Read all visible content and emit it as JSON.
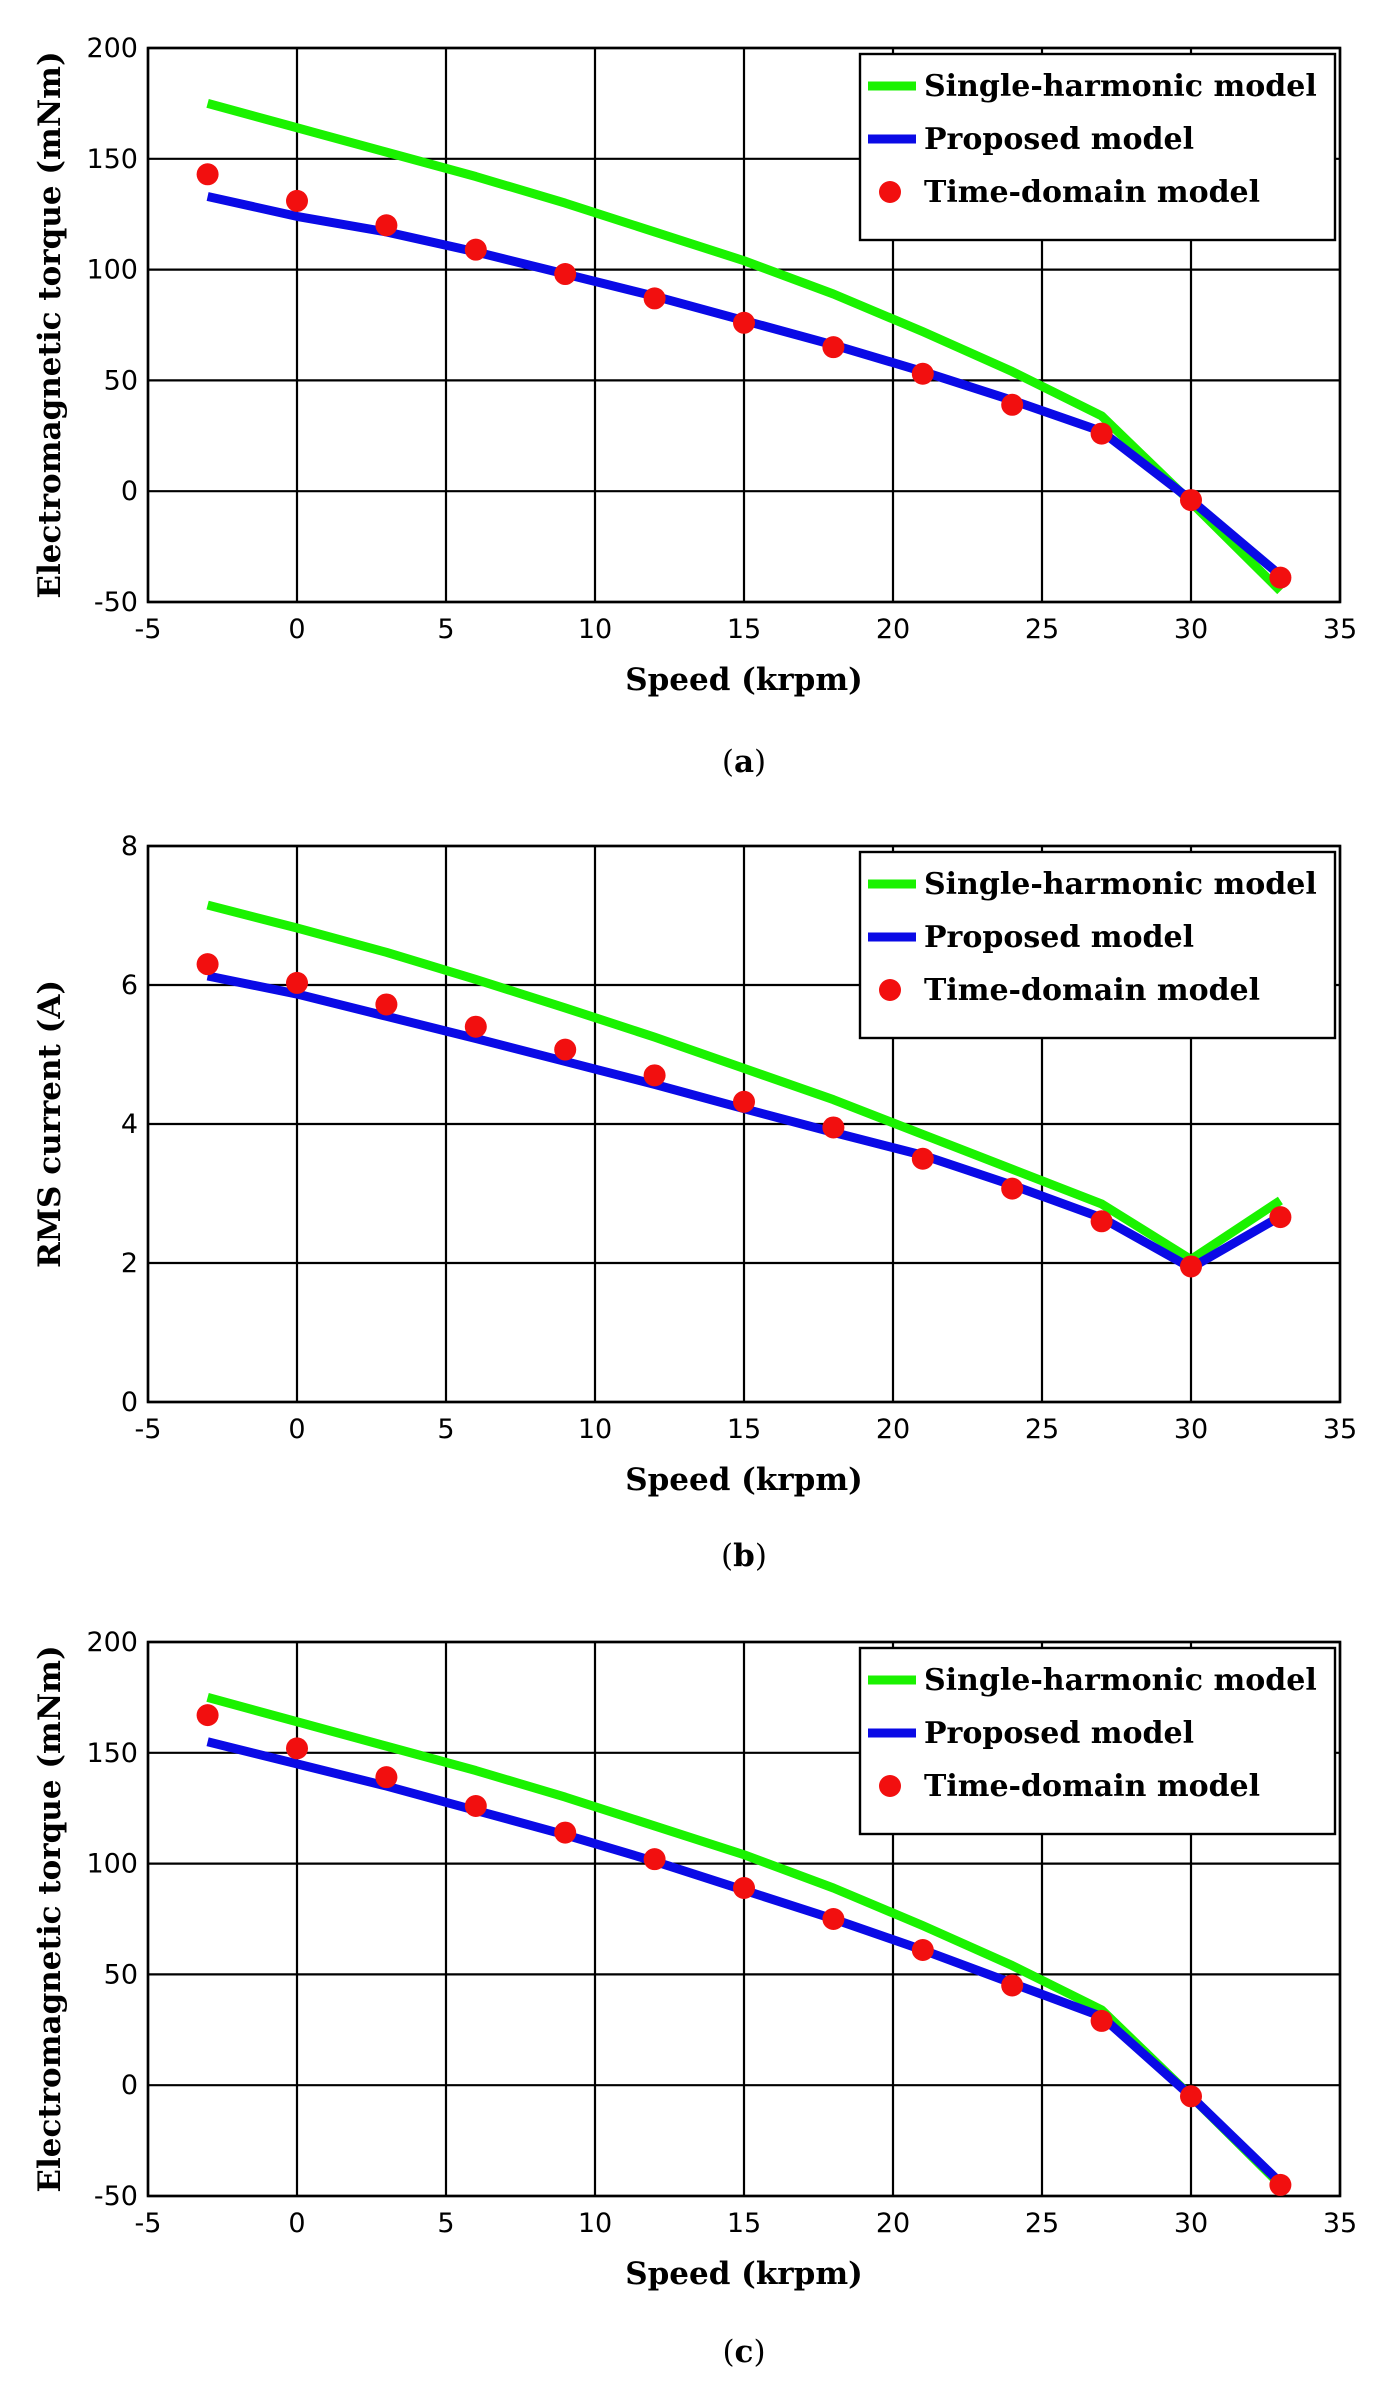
{
  "chart_data": [
    {
      "type": "line",
      "panel": "a",
      "caption_letter": "a",
      "xlabel": "Speed (krpm)",
      "ylabel": "Electromagnetic torque (mNm)",
      "xlim": [
        -5,
        35
      ],
      "ylim": [
        -50,
        200
      ],
      "xticks": [
        -5,
        0,
        5,
        10,
        15,
        20,
        25,
        30,
        35
      ],
      "yticks": [
        -50,
        0,
        50,
        100,
        150,
        200
      ],
      "grid": true,
      "legend_position": "top-right",
      "series": [
        {
          "name": "Single-harmonic model",
          "style": "line",
          "color": "#1AF200",
          "x": [
            -3,
            0,
            3,
            6,
            9,
            12,
            15,
            18,
            21,
            24,
            27,
            30,
            33
          ],
          "y": [
            175,
            164,
            153,
            142,
            130,
            117,
            104,
            89,
            72,
            54,
            34,
            -5,
            -45
          ]
        },
        {
          "name": "Proposed model",
          "style": "line",
          "color": "#0A0AE6",
          "x": [
            -3,
            0,
            3,
            6,
            9,
            12,
            15,
            18,
            21,
            24,
            27,
            30,
            33
          ],
          "y": [
            133,
            124,
            117,
            108,
            98,
            88,
            77,
            66,
            54,
            41,
            27,
            -4,
            -38
          ]
        },
        {
          "name": "Time-domain model",
          "style": "marker",
          "color": "#F20F0F",
          "x": [
            -3,
            0,
            3,
            6,
            9,
            12,
            15,
            18,
            21,
            24,
            27,
            30,
            33
          ],
          "y": [
            143,
            131,
            120,
            109,
            98,
            87,
            76,
            65,
            53,
            39,
            26,
            -4,
            -39
          ]
        }
      ]
    },
    {
      "type": "line",
      "panel": "b",
      "caption_letter": "b",
      "xlabel": "Speed (krpm)",
      "ylabel": "RMS current (A)",
      "xlim": [
        -5,
        35
      ],
      "ylim": [
        0,
        8
      ],
      "xticks": [
        -5,
        0,
        5,
        10,
        15,
        20,
        25,
        30,
        35
      ],
      "yticks": [
        0,
        2,
        4,
        6,
        8
      ],
      "grid": true,
      "legend_position": "top-right",
      "series": [
        {
          "name": "Single-harmonic model",
          "style": "line",
          "color": "#1AF200",
          "x": [
            -3,
            0,
            3,
            6,
            9,
            12,
            15,
            18,
            21,
            24,
            27,
            30,
            33
          ],
          "y": [
            7.15,
            6.82,
            6.47,
            6.08,
            5.67,
            5.25,
            4.8,
            4.35,
            3.85,
            3.35,
            2.85,
            2.05,
            2.9
          ]
        },
        {
          "name": "Proposed model",
          "style": "line",
          "color": "#0A0AE6",
          "x": [
            -3,
            0,
            3,
            6,
            9,
            12,
            15,
            18,
            21,
            24,
            27,
            30,
            33
          ],
          "y": [
            6.13,
            5.87,
            5.55,
            5.23,
            4.9,
            4.57,
            4.22,
            3.88,
            3.55,
            3.12,
            2.65,
            1.93,
            2.67
          ]
        },
        {
          "name": "Time-domain model",
          "style": "marker",
          "color": "#F20F0F",
          "x": [
            -3,
            0,
            3,
            6,
            9,
            12,
            15,
            18,
            21,
            24,
            27,
            30,
            33
          ],
          "y": [
            6.3,
            6.03,
            5.72,
            5.4,
            5.07,
            4.7,
            4.32,
            3.95,
            3.5,
            3.07,
            2.6,
            1.95,
            2.66
          ]
        }
      ]
    },
    {
      "type": "line",
      "panel": "c",
      "caption_letter": "c",
      "xlabel": "Speed (krpm)",
      "ylabel": "Electromagnetic torque (mNm)",
      "xlim": [
        -5,
        35
      ],
      "ylim": [
        -50,
        200
      ],
      "xticks": [
        -5,
        0,
        5,
        10,
        15,
        20,
        25,
        30,
        35
      ],
      "yticks": [
        -50,
        0,
        50,
        100,
        150,
        200
      ],
      "grid": true,
      "legend_position": "top-right",
      "series": [
        {
          "name": "Single-harmonic model",
          "style": "line",
          "color": "#1AF200",
          "x": [
            -3,
            0,
            3,
            6,
            9,
            12,
            15,
            18,
            21,
            24,
            27,
            30,
            33
          ],
          "y": [
            175,
            164,
            153,
            142,
            130,
            117,
            104,
            89,
            72,
            54,
            34,
            -5,
            -45
          ]
        },
        {
          "name": "Proposed model",
          "style": "line",
          "color": "#0A0AE6",
          "x": [
            -3,
            0,
            3,
            6,
            9,
            12,
            15,
            18,
            21,
            24,
            27,
            30,
            33
          ],
          "y": [
            155,
            145,
            135,
            124,
            113,
            101,
            88,
            75,
            61,
            46,
            31,
            -5,
            -44
          ]
        },
        {
          "name": "Time-domain model",
          "style": "marker",
          "color": "#F20F0F",
          "x": [
            -3,
            0,
            3,
            6,
            9,
            12,
            15,
            18,
            21,
            24,
            27,
            30,
            33
          ],
          "y": [
            167,
            152,
            139,
            126,
            114,
            102,
            89,
            75,
            61,
            45,
            29,
            -5,
            -45
          ]
        }
      ]
    }
  ]
}
